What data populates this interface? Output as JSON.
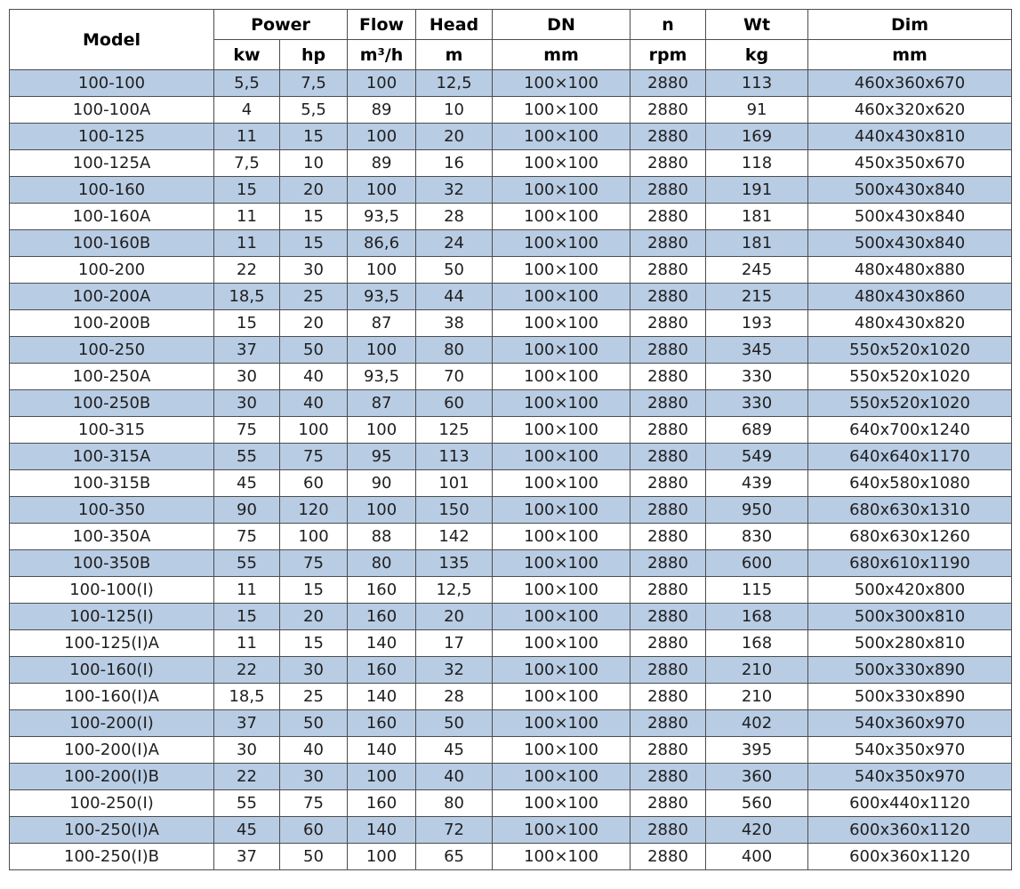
{
  "colors": {
    "row_alt_blue": "#b8cce4",
    "row_base_white": "#ffffff",
    "grid_border": "#4d4d4d",
    "header_text": "#000000",
    "cell_text": "#1f1f1f"
  },
  "table": {
    "header": {
      "model": "Model",
      "power": "Power",
      "power_kw": "kw",
      "power_hp": "hp",
      "flow": "Flow",
      "flow_unit": "m³/h",
      "head": "Head",
      "head_unit": "m",
      "dn": "DN",
      "dn_unit": "mm",
      "speed": "n",
      "speed_unit": "rpm",
      "weight": "Wt",
      "weight_unit": "kg",
      "dim": "Dim",
      "dim_unit": "mm"
    },
    "rows": [
      [
        "100-100",
        "5,5",
        "7,5",
        "100",
        "12,5",
        "100×100",
        "2880",
        "113",
        "460x360x670"
      ],
      [
        "100-100A",
        "4",
        "5,5",
        "89",
        "10",
        "100×100",
        "2880",
        "91",
        "460x320x620"
      ],
      [
        "100-125",
        "11",
        "15",
        "100",
        "20",
        "100×100",
        "2880",
        "169",
        "440x430x810"
      ],
      [
        "100-125A",
        "7,5",
        "10",
        "89",
        "16",
        "100×100",
        "2880",
        "118",
        "450x350x670"
      ],
      [
        "100-160",
        "15",
        "20",
        "100",
        "32",
        "100×100",
        "2880",
        "191",
        "500x430x840"
      ],
      [
        "100-160A",
        "11",
        "15",
        "93,5",
        "28",
        "100×100",
        "2880",
        "181",
        "500x430x840"
      ],
      [
        "100-160B",
        "11",
        "15",
        "86,6",
        "24",
        "100×100",
        "2880",
        "181",
        "500x430x840"
      ],
      [
        "100-200",
        "22",
        "30",
        "100",
        "50",
        "100×100",
        "2880",
        "245",
        "480x480x880"
      ],
      [
        "100-200A",
        "18,5",
        "25",
        "93,5",
        "44",
        "100×100",
        "2880",
        "215",
        "480x430x860"
      ],
      [
        "100-200B",
        "15",
        "20",
        "87",
        "38",
        "100×100",
        "2880",
        "193",
        "480x430x820"
      ],
      [
        "100-250",
        "37",
        "50",
        "100",
        "80",
        "100×100",
        "2880",
        "345",
        "550x520x1020"
      ],
      [
        "100-250A",
        "30",
        "40",
        "93,5",
        "70",
        "100×100",
        "2880",
        "330",
        "550x520x1020"
      ],
      [
        "100-250B",
        "30",
        "40",
        "87",
        "60",
        "100×100",
        "2880",
        "330",
        "550x520x1020"
      ],
      [
        "100-315",
        "75",
        "100",
        "100",
        "125",
        "100×100",
        "2880",
        "689",
        "640x700x1240"
      ],
      [
        "100-315A",
        "55",
        "75",
        "95",
        "113",
        "100×100",
        "2880",
        "549",
        "640x640x1170"
      ],
      [
        "100-315B",
        "45",
        "60",
        "90",
        "101",
        "100×100",
        "2880",
        "439",
        "640x580x1080"
      ],
      [
        "100-350",
        "90",
        "120",
        "100",
        "150",
        "100×100",
        "2880",
        "950",
        "680x630x1310"
      ],
      [
        "100-350A",
        "75",
        "100",
        "88",
        "142",
        "100×100",
        "2880",
        "830",
        "680x630x1260"
      ],
      [
        "100-350B",
        "55",
        "75",
        "80",
        "135",
        "100×100",
        "2880",
        "600",
        "680x610x1190"
      ],
      [
        "100-100(I)",
        "11",
        "15",
        "160",
        "12,5",
        "100×100",
        "2880",
        "115",
        "500x420x800"
      ],
      [
        "100-125(I)",
        "15",
        "20",
        "160",
        "20",
        "100×100",
        "2880",
        "168",
        "500x300x810"
      ],
      [
        "100-125(I)A",
        "11",
        "15",
        "140",
        "17",
        "100×100",
        "2880",
        "168",
        "500x280x810"
      ],
      [
        "100-160(I)",
        "22",
        "30",
        "160",
        "32",
        "100×100",
        "2880",
        "210",
        "500x330x890"
      ],
      [
        "100-160(I)A",
        "18,5",
        "25",
        "140",
        "28",
        "100×100",
        "2880",
        "210",
        "500x330x890"
      ],
      [
        "100-200(I)",
        "37",
        "50",
        "160",
        "50",
        "100×100",
        "2880",
        "402",
        "540x360x970"
      ],
      [
        "100-200(I)A",
        "30",
        "40",
        "140",
        "45",
        "100×100",
        "2880",
        "395",
        "540x350x970"
      ],
      [
        "100-200(I)B",
        "22",
        "30",
        "100",
        "40",
        "100×100",
        "2880",
        "360",
        "540x350x970"
      ],
      [
        "100-250(I)",
        "55",
        "75",
        "160",
        "80",
        "100×100",
        "2880",
        "560",
        "600x440x1120"
      ],
      [
        "100-250(I)A",
        "45",
        "60",
        "140",
        "72",
        "100×100",
        "2880",
        "420",
        "600x360x1120"
      ],
      [
        "100-250(I)B",
        "37",
        "50",
        "100",
        "65",
        "100×100",
        "2880",
        "400",
        "600x360x1120"
      ]
    ]
  }
}
